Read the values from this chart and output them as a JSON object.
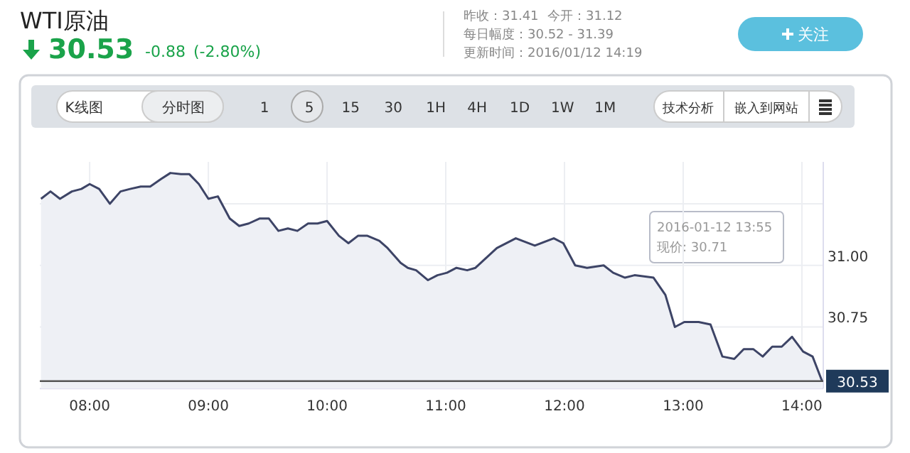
{
  "chart_data": {
    "type": "area",
    "title": "WTI原油",
    "x": [
      7.59,
      7.67,
      7.75,
      7.85,
      7.93,
      8.0,
      8.08,
      8.17,
      8.26,
      8.34,
      8.43,
      8.51,
      8.6,
      8.68,
      8.77,
      8.84,
      8.92,
      9.0,
      9.08,
      9.18,
      9.26,
      9.34,
      9.43,
      9.51,
      9.59,
      9.67,
      9.75,
      9.84,
      9.92,
      10.0,
      10.1,
      10.18,
      10.26,
      10.34,
      10.44,
      10.51,
      10.62,
      10.68,
      10.75,
      10.85,
      10.93,
      11.01,
      11.09,
      11.18,
      11.25,
      11.43,
      11.59,
      11.75,
      11.91,
      11.99,
      12.09,
      12.19,
      12.33,
      12.41,
      12.51,
      12.59,
      12.75,
      12.85,
      12.93,
      13.01,
      13.13,
      13.23,
      13.33,
      13.43,
      13.51,
      13.59,
      13.67,
      13.75,
      13.83,
      13.917,
      14.01,
      14.09,
      14.17
    ],
    "series": [
      {
        "color": "#3d4466",
        "values": [
          31.27,
          31.3,
          31.27,
          31.3,
          31.31,
          31.33,
          31.31,
          31.25,
          31.3,
          31.31,
          31.32,
          31.32,
          31.35,
          31.375,
          31.37,
          31.37,
          31.33,
          31.27,
          31.28,
          31.19,
          31.16,
          31.17,
          31.19,
          31.19,
          31.14,
          31.15,
          31.14,
          31.17,
          31.17,
          31.18,
          31.12,
          31.09,
          31.12,
          31.12,
          31.1,
          31.07,
          31.01,
          30.99,
          30.98,
          30.94,
          30.96,
          30.97,
          30.99,
          30.98,
          30.99,
          31.07,
          31.11,
          31.08,
          31.11,
          31.09,
          31.0,
          30.99,
          31.0,
          30.97,
          30.95,
          30.96,
          30.95,
          30.88,
          30.75,
          30.77,
          30.77,
          30.76,
          30.63,
          30.62,
          30.66,
          30.66,
          30.63,
          30.67,
          30.67,
          30.71,
          30.65,
          30.63,
          30.53
        ]
      }
    ],
    "xlim": [
      7.58,
      14.18
    ],
    "ylim": [
      30.5,
      31.42
    ],
    "xticks": [
      {
        "value": 8,
        "label": "08:00"
      },
      {
        "value": 9,
        "label": "09:00"
      },
      {
        "value": 10,
        "label": "10:00"
      },
      {
        "value": 11,
        "label": "11:00"
      },
      {
        "value": 12,
        "label": "12:00"
      },
      {
        "value": 13,
        "label": "13:00"
      },
      {
        "value": 14,
        "label": "14:00"
      }
    ],
    "yticks": [
      {
        "value": 30.75,
        "label": "30.75"
      },
      {
        "value": 31,
        "label": "31.00"
      },
      {
        "value": 31.25,
        "label": null
      }
    ],
    "grid": true,
    "ref_lines": [
      {
        "axis": "y",
        "value": 30.53,
        "label": "30.53",
        "color": "#555555"
      }
    ],
    "annotations": [
      "30.53",
      "-0.88",
      "(-2.80%)",
      "昨收：31.41",
      "今开：31.12",
      "每日幅度：30.52 - 31.39",
      "更新时间：2016/01/12 14:19",
      "关注",
      "K线图",
      "分时图",
      "1 5 15 30 1H 4H 1D 1W 1M",
      "技术分析",
      "嵌入到网站",
      "2016-01-12 13:55",
      "现价:  30.71"
    ]
  }
}
